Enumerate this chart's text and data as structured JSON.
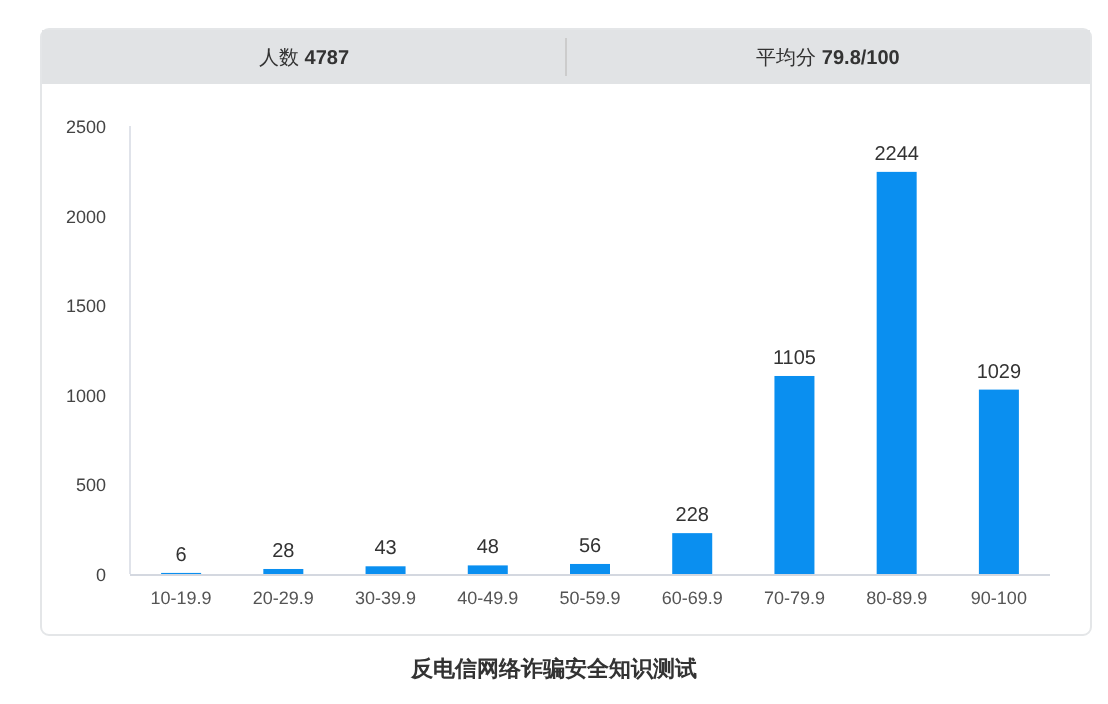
{
  "chart_data": {
    "type": "bar",
    "title": "反电信网络诈骗安全知识测试",
    "annotations": [
      "人数 4787",
      "平均分 79.8/100"
    ],
    "categories": [
      "10-19.9",
      "20-29.9",
      "30-39.9",
      "40-49.9",
      "50-59.9",
      "60-69.9",
      "70-79.9",
      "80-89.9",
      "90-100"
    ],
    "values": [
      6,
      28,
      43,
      48,
      56,
      228,
      1105,
      2244,
      1029
    ],
    "color": "#0a8ff0",
    "ylim": [
      0,
      2500
    ],
    "yticks": [
      0,
      500,
      1000,
      1500,
      2000,
      2500
    ],
    "data_labels": true
  }
}
